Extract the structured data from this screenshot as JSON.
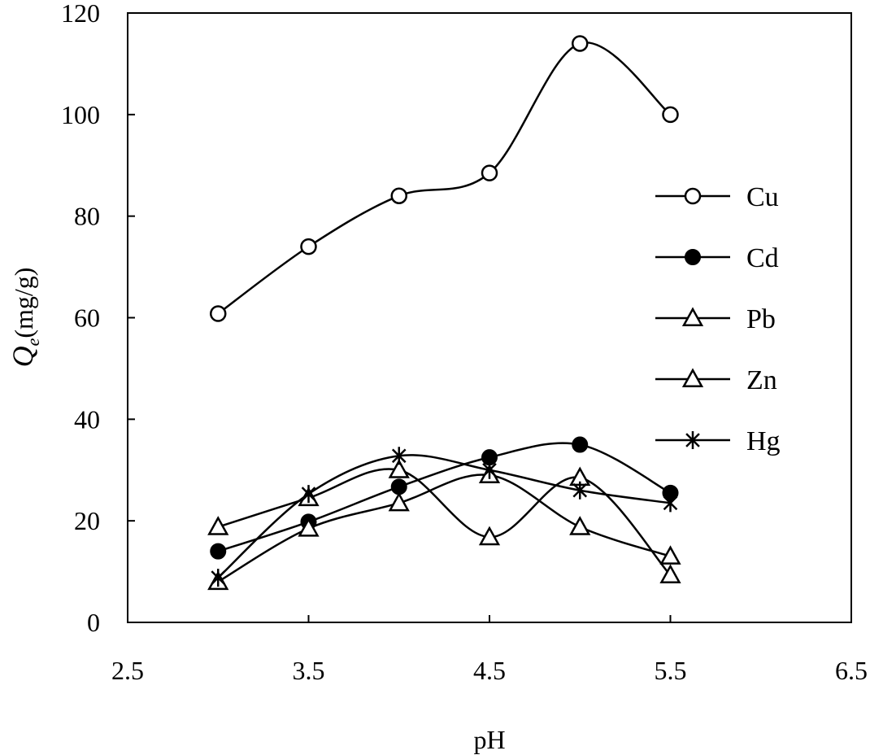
{
  "chart_data": {
    "type": "line",
    "title": "",
    "xlabel": "pH",
    "ylabel_symbol": "Q",
    "ylabel_subscript": "e",
    "ylabel_unit": "(mg/g)",
    "xlim": [
      2.5,
      6.5
    ],
    "ylim": [
      0,
      120
    ],
    "xticks": [
      2.5,
      3.5,
      4.5,
      5.5,
      6.5
    ],
    "xtick_labels": [
      "2.5",
      "3.5",
      "4.5",
      "5.5",
      "6.5"
    ],
    "yticks": [
      0,
      20,
      40,
      60,
      80,
      100,
      120
    ],
    "ytick_labels": [
      "0",
      "20",
      "40",
      "60",
      "80",
      "100",
      "120"
    ],
    "grid": false,
    "legend_position": "right",
    "x": [
      3.0,
      3.5,
      4.0,
      4.5,
      5.0,
      5.5
    ],
    "series": [
      {
        "name": "Cu",
        "marker": "circle-open",
        "values": [
          60.8,
          74.0,
          84.0,
          88.5,
          114.0,
          100.0
        ]
      },
      {
        "name": "Cd",
        "marker": "circle-filled",
        "values": [
          14.0,
          19.8,
          26.7,
          32.5,
          35.0,
          25.5
        ]
      },
      {
        "name": "Pb",
        "marker": "triangle-open",
        "values": [
          18.8,
          24.5,
          30.0,
          16.8,
          28.5,
          9.3
        ]
      },
      {
        "name": "Zn",
        "marker": "triangle-open",
        "values": [
          8.0,
          18.5,
          23.5,
          29.0,
          18.8,
          13.0
        ]
      },
      {
        "name": "Hg",
        "marker": "asterisk",
        "values": [
          8.8,
          25.3,
          32.8,
          30.0,
          26.0,
          23.5
        ]
      }
    ]
  }
}
